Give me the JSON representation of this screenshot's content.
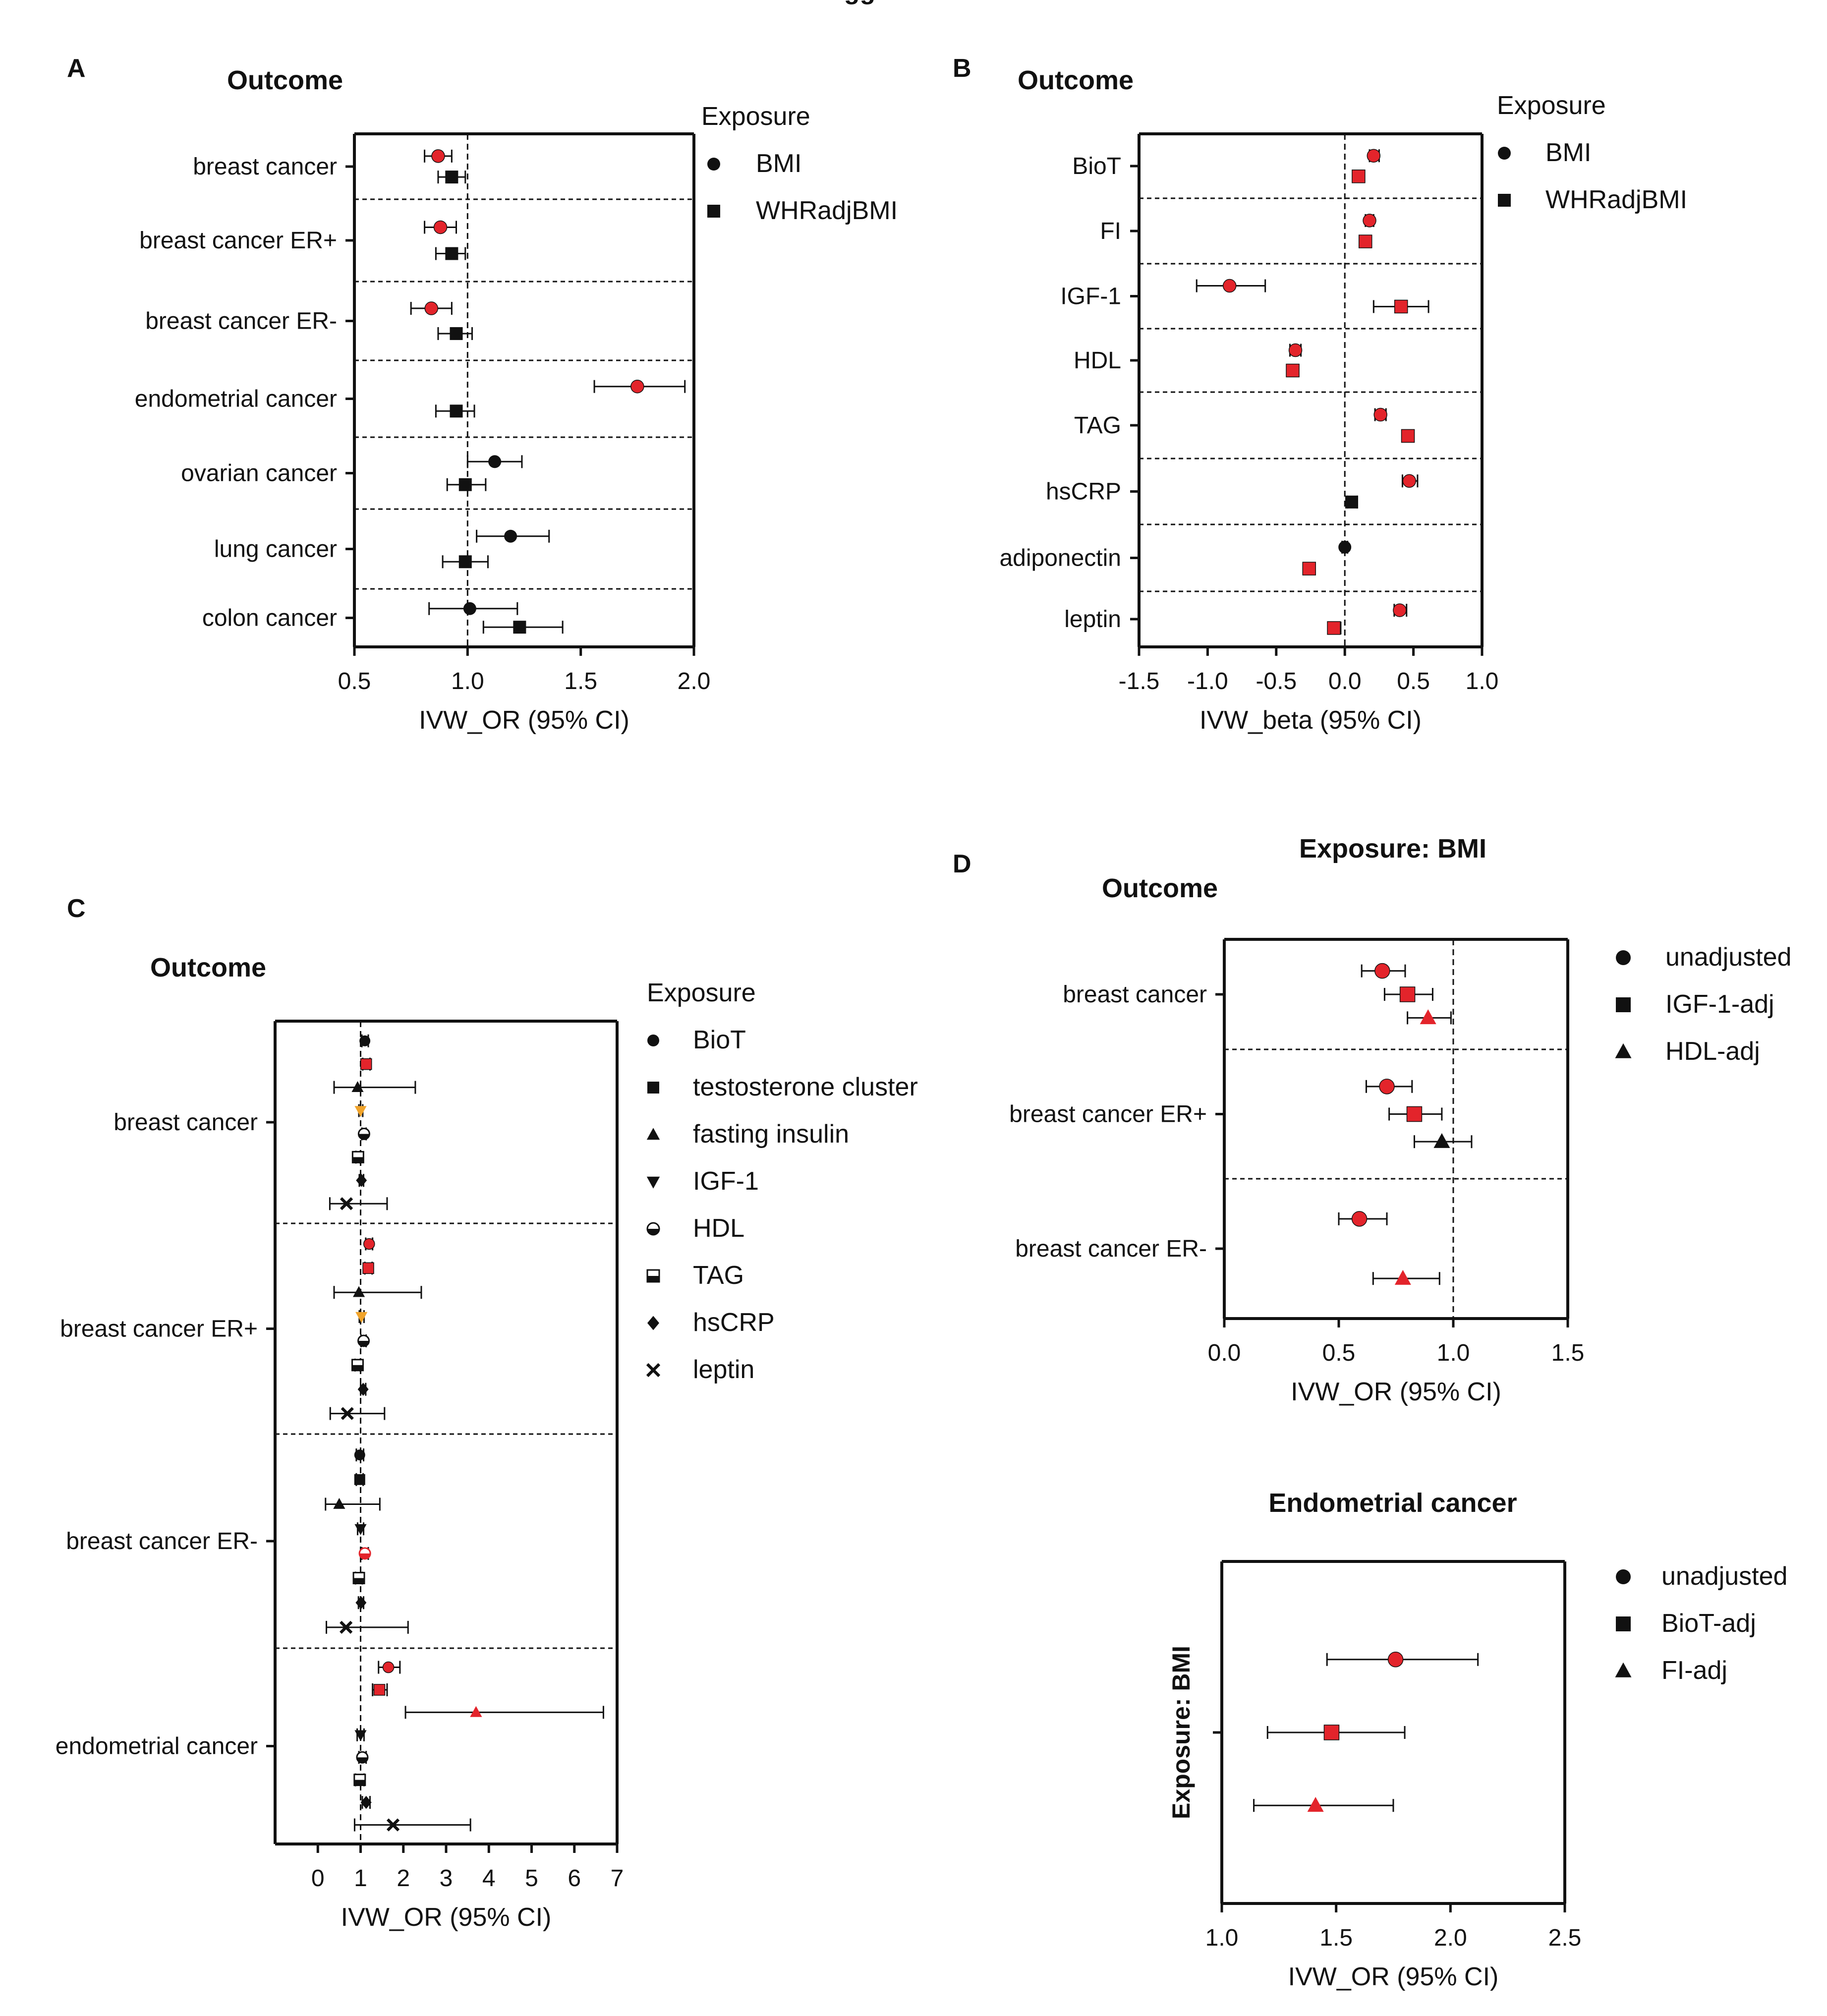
{
  "figure": {
    "top_caption": "and suggestive evidence",
    "colors": {
      "significant": "#e3242b",
      "nonsignificant": "#111111",
      "orange": "#f0a32a",
      "axis": "#111111"
    }
  },
  "chart_data": [
    {
      "panel": "A",
      "type": "forest",
      "title": "Outcome",
      "xlabel": "IVW_OR (95% CI)",
      "xlim": [
        0.5,
        2.0
      ],
      "xticks": [
        0.5,
        1.0,
        1.5,
        2.0
      ],
      "xtick_labels": [
        "0.5",
        "1.0",
        "1.5",
        "2.0"
      ],
      "ref_line": 1.0,
      "legend": {
        "title": "Exposure",
        "items": [
          {
            "label": "BMI",
            "marker": "circle"
          },
          {
            "label": "WHRadjBMI",
            "marker": "square"
          }
        ]
      },
      "groups": [
        {
          "outcome": "breast cancer",
          "points": [
            {
              "exposure": "BMI",
              "or": 0.87,
              "lo": 0.81,
              "hi": 0.93,
              "sig": true
            },
            {
              "exposure": "WHRadjBMI",
              "or": 0.93,
              "lo": 0.87,
              "hi": 0.99,
              "sig": false
            }
          ]
        },
        {
          "outcome": "breast cancer ER+",
          "points": [
            {
              "exposure": "BMI",
              "or": 0.88,
              "lo": 0.81,
              "hi": 0.95,
              "sig": true
            },
            {
              "exposure": "WHRadjBMI",
              "or": 0.93,
              "lo": 0.86,
              "hi": 0.99,
              "sig": false
            }
          ]
        },
        {
          "outcome": "breast cancer ER-",
          "points": [
            {
              "exposure": "BMI",
              "or": 0.84,
              "lo": 0.75,
              "hi": 0.93,
              "sig": true
            },
            {
              "exposure": "WHRadjBMI",
              "or": 0.95,
              "lo": 0.87,
              "hi": 1.02,
              "sig": false
            }
          ]
        },
        {
          "outcome": "endometrial cancer",
          "points": [
            {
              "exposure": "BMI",
              "or": 1.75,
              "lo": 1.56,
              "hi": 1.96,
              "sig": true
            },
            {
              "exposure": "WHRadjBMI",
              "or": 0.95,
              "lo": 0.86,
              "hi": 1.03,
              "sig": false
            }
          ]
        },
        {
          "outcome": "ovarian cancer",
          "points": [
            {
              "exposure": "BMI",
              "or": 1.12,
              "lo": 1.0,
              "hi": 1.24,
              "sig": false
            },
            {
              "exposure": "WHRadjBMI",
              "or": 0.99,
              "lo": 0.91,
              "hi": 1.08,
              "sig": false
            }
          ]
        },
        {
          "outcome": "lung cancer",
          "points": [
            {
              "exposure": "BMI",
              "or": 1.19,
              "lo": 1.04,
              "hi": 1.36,
              "sig": false
            },
            {
              "exposure": "WHRadjBMI",
              "or": 0.99,
              "lo": 0.89,
              "hi": 1.09,
              "sig": false
            }
          ]
        },
        {
          "outcome": "colon cancer",
          "points": [
            {
              "exposure": "BMI",
              "or": 1.01,
              "lo": 0.83,
              "hi": 1.22,
              "sig": false
            },
            {
              "exposure": "WHRadjBMI",
              "or": 1.23,
              "lo": 1.07,
              "hi": 1.42,
              "sig": false
            }
          ]
        }
      ]
    },
    {
      "panel": "B",
      "type": "forest",
      "title": "Outcome",
      "xlabel": "IVW_beta (95% CI)",
      "xlim": [
        -1.5,
        1.0
      ],
      "xticks": [
        -1.5,
        -1.0,
        -0.5,
        0.0,
        0.5,
        1.0
      ],
      "xtick_labels": [
        "-1.5",
        "-1.0",
        "-0.5",
        "0.0",
        "0.5",
        "1.0"
      ],
      "ref_line": 0.0,
      "legend": {
        "title": "Exposure",
        "items": [
          {
            "label": "BMI",
            "marker": "circle"
          },
          {
            "label": "WHRadjBMI",
            "marker": "square"
          }
        ]
      },
      "groups": [
        {
          "outcome": "BioT",
          "points": [
            {
              "exposure": "BMI",
              "or": 0.21,
              "lo": 0.18,
              "hi": 0.25,
              "sig": true
            },
            {
              "exposure": "WHRadjBMI",
              "or": 0.1,
              "lo": 0.07,
              "hi": 0.13,
              "sig": true
            }
          ]
        },
        {
          "outcome": "FI",
          "points": [
            {
              "exposure": "BMI",
              "or": 0.18,
              "lo": 0.15,
              "hi": 0.21,
              "sig": true
            },
            {
              "exposure": "WHRadjBMI",
              "or": 0.15,
              "lo": 0.12,
              "hi": 0.18,
              "sig": true
            }
          ]
        },
        {
          "outcome": "IGF-1",
          "points": [
            {
              "exposure": "BMI",
              "or": -0.84,
              "lo": -1.08,
              "hi": -0.58,
              "sig": true
            },
            {
              "exposure": "WHRadjBMI",
              "or": 0.41,
              "lo": 0.21,
              "hi": 0.61,
              "sig": true
            }
          ]
        },
        {
          "outcome": "HDL",
          "points": [
            {
              "exposure": "BMI",
              "or": -0.36,
              "lo": -0.4,
              "hi": -0.32,
              "sig": true
            },
            {
              "exposure": "WHRadjBMI",
              "or": -0.38,
              "lo": -0.42,
              "hi": -0.34,
              "sig": true
            }
          ]
        },
        {
          "outcome": "TAG",
          "points": [
            {
              "exposure": "BMI",
              "or": 0.26,
              "lo": 0.22,
              "hi": 0.3,
              "sig": true
            },
            {
              "exposure": "WHRadjBMI",
              "or": 0.46,
              "lo": 0.42,
              "hi": 0.5,
              "sig": true
            }
          ]
        },
        {
          "outcome": "hsCRP",
          "points": [
            {
              "exposure": "BMI",
              "or": 0.47,
              "lo": 0.42,
              "hi": 0.53,
              "sig": true
            },
            {
              "exposure": "WHRadjBMI",
              "or": 0.05,
              "lo": 0.02,
              "hi": 0.09,
              "sig": false
            }
          ]
        },
        {
          "outcome": "adiponectin",
          "points": [
            {
              "exposure": "BMI",
              "or": 0.0,
              "lo": -0.02,
              "hi": 0.02,
              "sig": false
            },
            {
              "exposure": "WHRadjBMI",
              "or": -0.26,
              "lo": -0.28,
              "hi": -0.23,
              "sig": true
            }
          ]
        },
        {
          "outcome": "leptin",
          "points": [
            {
              "exposure": "BMI",
              "or": 0.4,
              "lo": 0.36,
              "hi": 0.45,
              "sig": true
            },
            {
              "exposure": "WHRadjBMI",
              "or": -0.08,
              "lo": -0.12,
              "hi": -0.03,
              "sig": true
            }
          ]
        }
      ]
    },
    {
      "panel": "C",
      "type": "forest",
      "title": "Outcome",
      "xlabel": "IVW_OR (95% CI)",
      "xlim": [
        -1,
        7
      ],
      "xticks": [
        0,
        1,
        2,
        3,
        4,
        5,
        6,
        7
      ],
      "xtick_labels": [
        "0",
        "1",
        "2",
        "3",
        "4",
        "5",
        "6",
        "7"
      ],
      "ref_line": 1.0,
      "legend": {
        "title": "Exposure",
        "items": [
          {
            "label": "BioT",
            "marker": "circle"
          },
          {
            "label": "testosterone cluster",
            "marker": "square"
          },
          {
            "label": "fasting insulin",
            "marker": "triangle"
          },
          {
            "label": "IGF-1",
            "marker": "triangle-down"
          },
          {
            "label": "HDL",
            "marker": "half-circle"
          },
          {
            "label": "TAG",
            "marker": "half-square"
          },
          {
            "label": "hsCRP",
            "marker": "diamond"
          },
          {
            "label": "leptin",
            "marker": "cross"
          }
        ]
      },
      "groups": [
        {
          "outcome": "breast cancer",
          "points": [
            {
              "exposure": "BioT",
              "or": 1.1,
              "lo": 1.03,
              "hi": 1.18,
              "sig": false
            },
            {
              "exposure": "testosterone cluster",
              "or": 1.13,
              "lo": 1.05,
              "hi": 1.22,
              "sig": true
            },
            {
              "exposure": "fasting insulin",
              "or": 0.93,
              "lo": 0.38,
              "hi": 2.28,
              "sig": false
            },
            {
              "exposure": "IGF-1",
              "or": 1.0,
              "lo": 0.96,
              "hi": 1.05,
              "sig": true,
              "orange": true
            },
            {
              "exposure": "HDL",
              "or": 1.08,
              "lo": 1.03,
              "hi": 1.13,
              "sig": false
            },
            {
              "exposure": "TAG",
              "or": 0.94,
              "lo": 0.89,
              "hi": 0.99,
              "sig": false
            },
            {
              "exposure": "hsCRP",
              "or": 1.02,
              "lo": 0.97,
              "hi": 1.07,
              "sig": false
            },
            {
              "exposure": "leptin",
              "or": 0.67,
              "lo": 0.28,
              "hi": 1.62,
              "sig": false
            }
          ]
        },
        {
          "outcome": "breast cancer ER+",
          "points": [
            {
              "exposure": "BioT",
              "or": 1.2,
              "lo": 1.12,
              "hi": 1.28,
              "sig": true
            },
            {
              "exposure": "testosterone cluster",
              "or": 1.18,
              "lo": 1.1,
              "hi": 1.27,
              "sig": true
            },
            {
              "exposure": "fasting insulin",
              "or": 0.96,
              "lo": 0.38,
              "hi": 2.42,
              "sig": false
            },
            {
              "exposure": "IGF-1",
              "or": 1.02,
              "lo": 0.97,
              "hi": 1.08,
              "sig": true,
              "orange": true
            },
            {
              "exposure": "HDL",
              "or": 1.07,
              "lo": 1.01,
              "hi": 1.13,
              "sig": false
            },
            {
              "exposure": "TAG",
              "or": 0.93,
              "lo": 0.87,
              "hi": 0.99,
              "sig": false
            },
            {
              "exposure": "hsCRP",
              "or": 1.06,
              "lo": 1.0,
              "hi": 1.12,
              "sig": false
            },
            {
              "exposure": "leptin",
              "or": 0.69,
              "lo": 0.29,
              "hi": 1.56,
              "sig": false
            }
          ]
        },
        {
          "outcome": "breast cancer ER-",
          "points": [
            {
              "exposure": "BioT",
              "or": 0.98,
              "lo": 0.9,
              "hi": 1.07,
              "sig": false
            },
            {
              "exposure": "testosterone cluster",
              "or": 0.98,
              "lo": 0.9,
              "hi": 1.06,
              "sig": false
            },
            {
              "exposure": "fasting insulin",
              "or": 0.5,
              "lo": 0.18,
              "hi": 1.45,
              "sig": false
            },
            {
              "exposure": "IGF-1",
              "or": 1.0,
              "lo": 0.93,
              "hi": 1.07,
              "sig": false
            },
            {
              "exposure": "HDL",
              "or": 1.1,
              "lo": 1.03,
              "hi": 1.18,
              "sig": true
            },
            {
              "exposure": "TAG",
              "or": 0.96,
              "lo": 0.88,
              "hi": 1.04,
              "sig": false
            },
            {
              "exposure": "hsCRP",
              "or": 1.01,
              "lo": 0.95,
              "hi": 1.07,
              "sig": false
            },
            {
              "exposure": "leptin",
              "or": 0.66,
              "lo": 0.2,
              "hi": 2.11,
              "sig": false
            }
          ]
        },
        {
          "outcome": "endometrial cancer",
          "points": [
            {
              "exposure": "BioT",
              "or": 1.65,
              "lo": 1.42,
              "hi": 1.92,
              "sig": true
            },
            {
              "exposure": "testosterone cluster",
              "or": 1.44,
              "lo": 1.28,
              "hi": 1.62,
              "sig": true
            },
            {
              "exposure": "fasting insulin",
              "or": 3.7,
              "lo": 2.05,
              "hi": 6.68,
              "sig": true
            },
            {
              "exposure": "IGF-1",
              "or": 1.0,
              "lo": 0.92,
              "hi": 1.08,
              "sig": false
            },
            {
              "exposure": "HDL",
              "or": 1.04,
              "lo": 0.96,
              "hi": 1.13,
              "sig": false
            },
            {
              "exposure": "TAG",
              "or": 0.98,
              "lo": 0.88,
              "hi": 1.08,
              "sig": false
            },
            {
              "exposure": "hsCRP",
              "or": 1.13,
              "lo": 1.04,
              "hi": 1.22,
              "sig": false
            },
            {
              "exposure": "leptin",
              "or": 1.76,
              "lo": 0.86,
              "hi": 3.57,
              "sig": false
            }
          ]
        }
      ]
    },
    {
      "panel": "D",
      "type": "forest",
      "header": "Exposure: BMI",
      "title": "Outcome",
      "xlabel": "IVW_OR (95% CI)",
      "xlim": [
        0.0,
        1.5
      ],
      "xticks": [
        0.0,
        0.5,
        1.0,
        1.5
      ],
      "xtick_labels": [
        "0.0",
        "0.5",
        "1.0",
        "1.5"
      ],
      "ref_line": 1.0,
      "legend": {
        "title": "",
        "items": [
          {
            "label": "unadjusted",
            "marker": "circle"
          },
          {
            "label": "IGF-1-adj",
            "marker": "square"
          },
          {
            "label": "HDL-adj",
            "marker": "triangle"
          }
        ]
      },
      "groups": [
        {
          "outcome": "breast cancer",
          "points": [
            {
              "exposure": "unadjusted",
              "or": 0.69,
              "lo": 0.6,
              "hi": 0.79,
              "sig": true
            },
            {
              "exposure": "IGF-1-adj",
              "or": 0.8,
              "lo": 0.7,
              "hi": 0.91,
              "sig": true
            },
            {
              "exposure": "HDL-adj",
              "or": 0.89,
              "lo": 0.8,
              "hi": 0.99,
              "sig": true
            }
          ]
        },
        {
          "outcome": "breast cancer ER+",
          "points": [
            {
              "exposure": "unadjusted",
              "or": 0.71,
              "lo": 0.62,
              "hi": 0.82,
              "sig": true
            },
            {
              "exposure": "IGF-1-adj",
              "or": 0.83,
              "lo": 0.72,
              "hi": 0.95,
              "sig": true
            },
            {
              "exposure": "HDL-adj",
              "or": 0.95,
              "lo": 0.83,
              "hi": 1.08,
              "sig": false
            }
          ]
        },
        {
          "outcome": "breast cancer ER-",
          "points": [
            {
              "exposure": "unadjusted",
              "or": 0.59,
              "lo": 0.5,
              "hi": 0.71,
              "sig": true
            },
            {
              "exposure": "IGF-1-adj",
              "or": null,
              "lo": null,
              "hi": null,
              "sig": false
            },
            {
              "exposure": "HDL-adj",
              "or": 0.78,
              "lo": 0.65,
              "hi": 0.94,
              "sig": true
            }
          ]
        }
      ]
    },
    {
      "panel": "D2",
      "type": "forest",
      "header": "Endometrial cancer",
      "ylabel": "Exposure: BMI",
      "xlabel": "IVW_OR (95% CI)",
      "xlim": [
        1.0,
        2.5
      ],
      "xticks": [
        1.0,
        1.5,
        2.0,
        2.5
      ],
      "xtick_labels": [
        "1.0",
        "1.5",
        "2.0",
        "2.5"
      ],
      "legend": {
        "title": "",
        "items": [
          {
            "label": "unadjusted",
            "marker": "circle"
          },
          {
            "label": "BioT-adj",
            "marker": "square"
          },
          {
            "label": "FI-adj",
            "marker": "triangle"
          }
        ]
      },
      "groups": [
        {
          "outcome": "",
          "points": [
            {
              "exposure": "unadjusted",
              "or": 1.76,
              "lo": 1.46,
              "hi": 2.12,
              "sig": true
            },
            {
              "exposure": "BioT-adj",
              "or": 1.48,
              "lo": 1.2,
              "hi": 1.8,
              "sig": true
            },
            {
              "exposure": "FI-adj",
              "or": 1.41,
              "lo": 1.14,
              "hi": 1.75,
              "sig": true
            }
          ]
        }
      ]
    }
  ]
}
